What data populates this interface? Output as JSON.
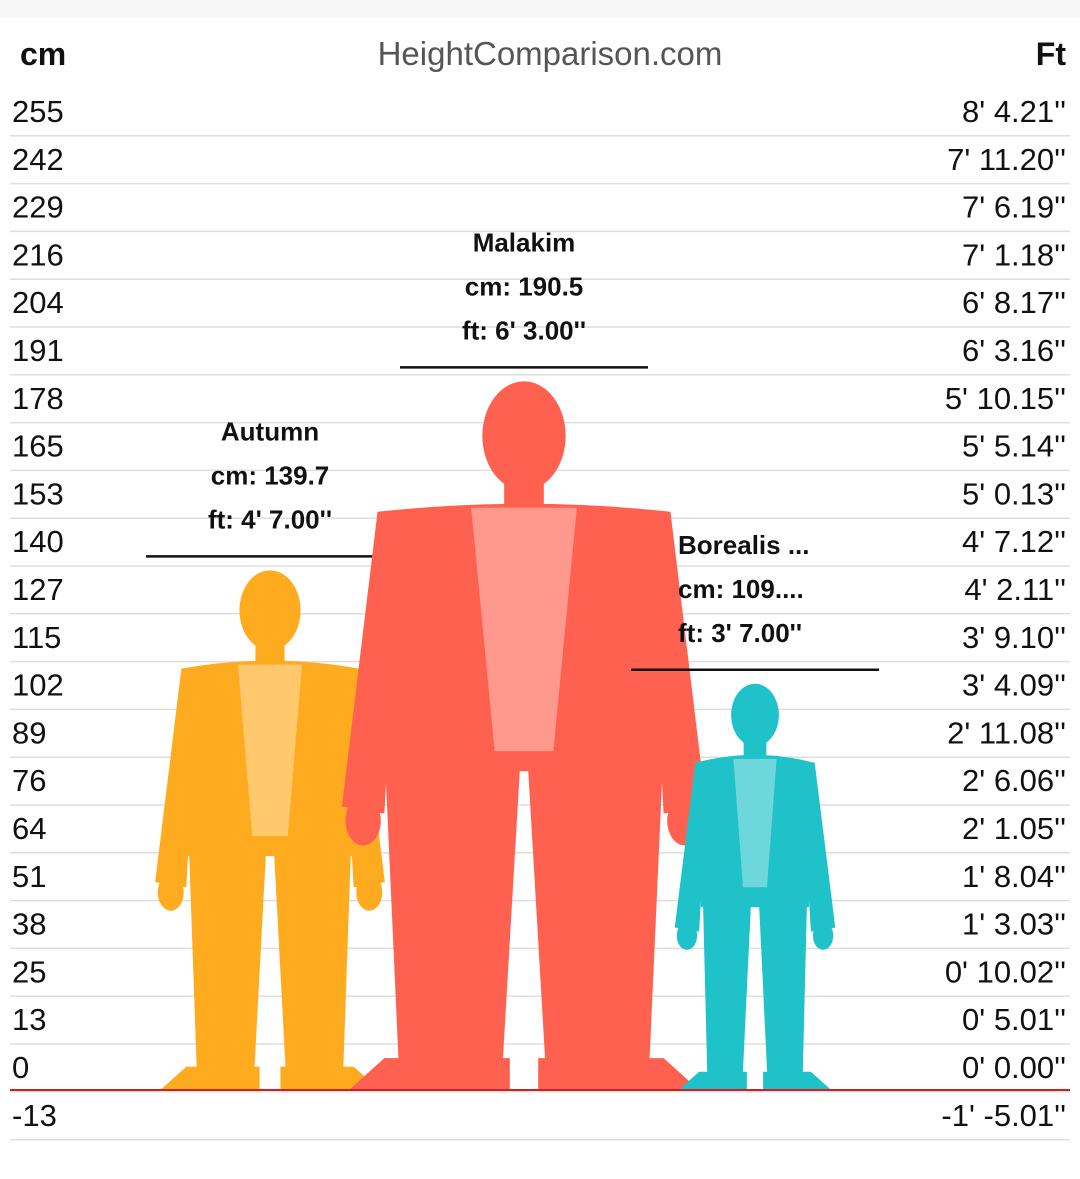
{
  "header": {
    "left_unit": "cm",
    "site": "HeightComparison.com",
    "right_unit": "Ft"
  },
  "chart_data": {
    "type": "bar",
    "categories": [
      "Autumn",
      "Malakim",
      "Borealis ..."
    ],
    "values": [
      139.7,
      190.5,
      109.2
    ],
    "value_labels": [
      {
        "name": "Autumn",
        "cm": "cm: 139.7",
        "ft": "ft: 4' 7.00''"
      },
      {
        "name": "Malakim",
        "cm": "cm: 190.5",
        "ft": "ft: 6' 3.00''"
      },
      {
        "name": "Borealis ...",
        "cm": "cm: 109....",
        "ft": "ft: 3' 7.00''"
      }
    ],
    "colors": [
      "#ffab1f",
      "#ff6150",
      "#1fc2c9"
    ],
    "ylim": [
      -13,
      255
    ],
    "grid": true,
    "cm_ticks": [
      "255",
      "242",
      "229",
      "216",
      "204",
      "191",
      "178",
      "165",
      "153",
      "140",
      "127",
      "115",
      "102",
      "89",
      "76",
      "64",
      "51",
      "38",
      "25",
      "13",
      "0",
      "-13"
    ],
    "ft_ticks": [
      "8' 4.21''",
      "7' 11.20''",
      "7' 6.19''",
      "7' 1.18''",
      "6' 8.17''",
      "6' 3.16''",
      "5' 10.15''",
      "5' 5.14''",
      "5' 0.13''",
      "4' 7.12''",
      "4' 2.11''",
      "3' 9.10''",
      "3' 4.09''",
      "2' 11.08''",
      "2' 6.06''",
      "2' 1.05''",
      "1' 8.04''",
      "1' 3.03''",
      "0' 10.02''",
      "0' 5.01''",
      "0' 0.00''",
      "-1' -5.01''"
    ],
    "baseline_color": "#cc2222"
  }
}
